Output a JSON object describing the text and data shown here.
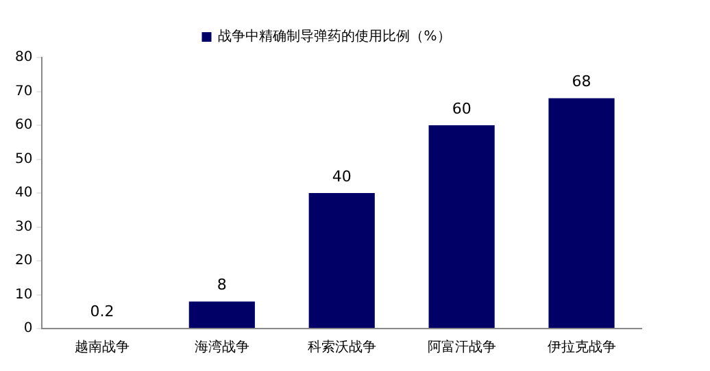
{
  "chart_data": {
    "type": "bar",
    "categories": [
      "越南战争",
      "海湾战争",
      "科索沃战争",
      "阿富汗战争",
      "伊拉克战争"
    ],
    "series": [
      {
        "name": "战争中精确制导弹药的使用比例（%）",
        "color": "#000066",
        "values": [
          0.2,
          8,
          40,
          60,
          68
        ]
      }
    ],
    "ylim": [
      0,
      80
    ],
    "yticks": [
      0,
      10,
      20,
      30,
      40,
      50,
      60,
      70,
      80
    ],
    "grid": false,
    "legend": "top",
    "data_labels": true
  }
}
